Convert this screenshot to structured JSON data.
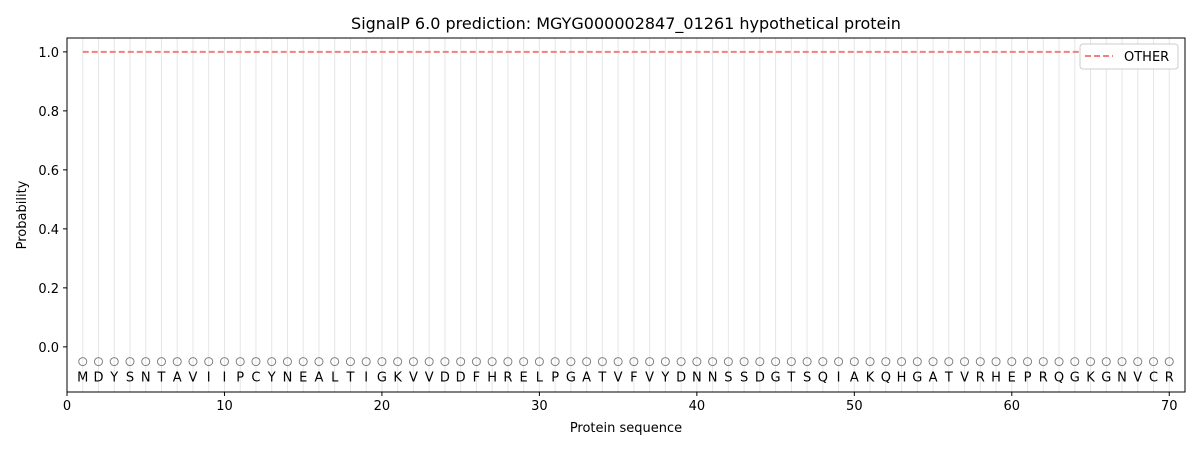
{
  "chart_data": {
    "type": "line",
    "title": "SignalP 6.0 prediction: MGYG000002847_01261 hypothetical protein",
    "xlabel": "Protein sequence",
    "ylabel": "Probability",
    "xlim": [
      0,
      71
    ],
    "ylim": [
      -0.153,
      1.047
    ],
    "xticks": [
      0,
      10,
      20,
      30,
      40,
      50,
      60,
      70
    ],
    "yticks": [
      "0.0",
      "0.2",
      "0.4",
      "0.6",
      "0.8",
      "1.0"
    ],
    "grid": "vertical lines at each residue",
    "legend": {
      "placement": "top-right",
      "entries": [
        "OTHER"
      ]
    },
    "sequence": [
      "M",
      "D",
      "Y",
      "S",
      "N",
      "T",
      "A",
      "V",
      "I",
      "I",
      "P",
      "C",
      "Y",
      "N",
      "E",
      "A",
      "L",
      "T",
      "I",
      "G",
      "K",
      "V",
      "V",
      "D",
      "D",
      "F",
      "H",
      "R",
      "E",
      "L",
      "P",
      "G",
      "A",
      "T",
      "V",
      "F",
      "V",
      "Y",
      "D",
      "N",
      "N",
      "S",
      "S",
      "D",
      "G",
      "T",
      "S",
      "Q",
      "I",
      "A",
      "K",
      "Q",
      "H",
      "G",
      "A",
      "T",
      "V",
      "R",
      "H",
      "E",
      "P",
      "R",
      "Q",
      "G",
      "K",
      "G",
      "N",
      "V",
      "C",
      "R"
    ],
    "predicted_labels": "O",
    "series": [
      {
        "name": "OTHER",
        "color": "#f08080",
        "style": "dashed",
        "x_range": [
          1,
          70
        ],
        "value": 1.0
      }
    ]
  }
}
